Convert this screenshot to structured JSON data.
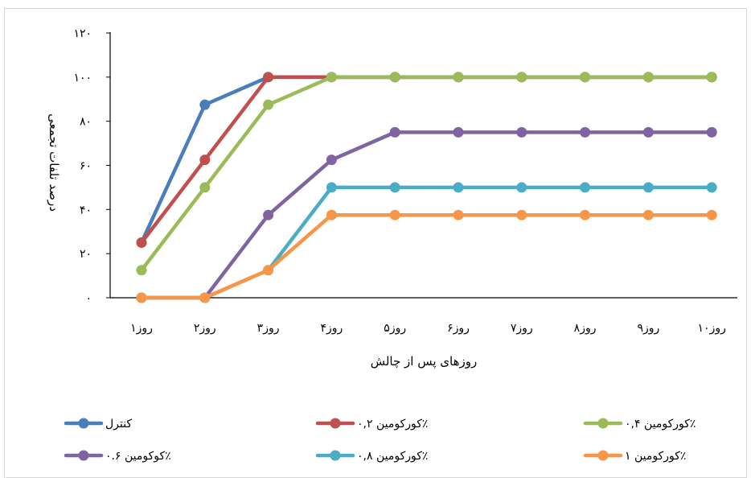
{
  "chart_data": {
    "type": "line",
    "categories": [
      "روز۱",
      "روز۲",
      "روز۳",
      "روز۴",
      "روز۵",
      "روز۶",
      "روز۷",
      "روز۸",
      "روز۹",
      "روز۱۰"
    ],
    "xlabel": "روزهای پس از چالش",
    "ylabel": "درصد تلفات تجمعی",
    "ylim": [
      0,
      120
    ],
    "yticks": [
      0,
      20,
      40,
      60,
      80,
      100,
      120
    ],
    "ytick_labels": [
      "۰",
      "۲۰",
      "۴۰",
      "۶۰",
      "۸۰",
      "۱۰۰",
      "۱۲۰"
    ],
    "grid": false,
    "legend_position": "bottom",
    "series": [
      {
        "name": "کنترل",
        "color": "#4a7ebb",
        "values": [
          25,
          87.5,
          100,
          100,
          100,
          100,
          100,
          100,
          100,
          100
        ]
      },
      {
        "name": "کورکومین ۰,۲٪",
        "color": "#c0504d",
        "values": [
          25,
          62.5,
          100,
          100,
          100,
          100,
          100,
          100,
          100,
          100
        ]
      },
      {
        "name": "کورکومین ۰,۴٪",
        "color": "#9bbb59",
        "values": [
          12.5,
          50,
          87.5,
          100,
          100,
          100,
          100,
          100,
          100,
          100
        ]
      },
      {
        "name": "کوکومین ۰.۶٪",
        "color": "#8064a2",
        "values": [
          0,
          0,
          37.5,
          62.5,
          75,
          75,
          75,
          75,
          75,
          75
        ]
      },
      {
        "name": "کورکومین ۰,۸٪",
        "color": "#4bacc6",
        "values": [
          0,
          0,
          12.5,
          50,
          50,
          50,
          50,
          50,
          50,
          50
        ]
      },
      {
        "name": "کورکومین ۱٪",
        "color": "#f79646",
        "values": [
          0,
          0,
          12.5,
          37.5,
          37.5,
          37.5,
          37.5,
          37.5,
          37.5,
          37.5
        ]
      }
    ]
  }
}
